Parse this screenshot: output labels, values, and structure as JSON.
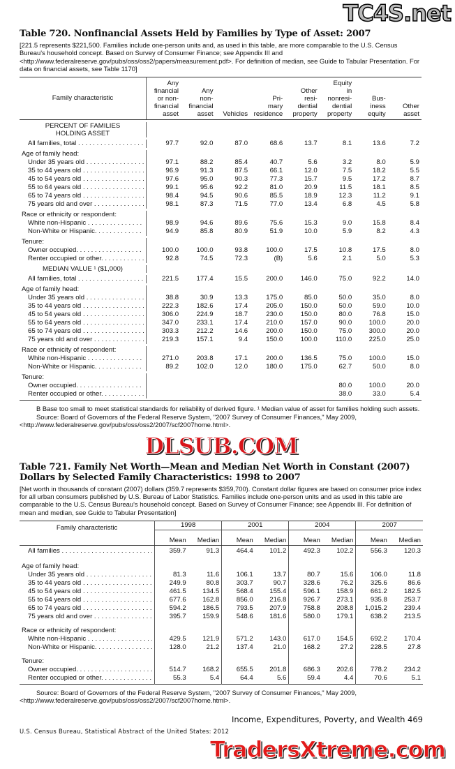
{
  "colors": {
    "watermark_red": "#d8141a",
    "text": "#111111"
  },
  "watermarks": [
    "TC4S.net",
    "DLSUB.COM",
    "TradersXtreme.com"
  ],
  "t720": {
    "title": "Table 720. Nonfinancial Assets Held by Families by Type of Asset: 2007",
    "headnote": "[221.5 represents $221,500. Families include one-person units and, as used in this table, are more comparable to the U.S. Census Bureau's household concept. Based on Survey of Consumer Finance; see Appendix III and <http://www.federalreserve.gov/pubs/oss/oss2/papers/measurement.pdf>. For definition of median, see Guide to Tabular Presentation. For data on financial assets, see Table 1170]",
    "stub_header": "Family characteristic",
    "columns": [
      [
        "Any",
        "financial",
        "or non-",
        "financial",
        "asset"
      ],
      [
        "Any",
        "non-",
        "financial",
        "asset"
      ],
      [
        "Vehicles"
      ],
      [
        "Pri-",
        "mary",
        "residence"
      ],
      [
        "Other",
        "resi-",
        "dential",
        "property"
      ],
      [
        "Equity",
        "in",
        "nonresi-",
        "dential",
        "property"
      ],
      [
        "Bus-",
        "iness",
        "equity"
      ],
      [
        "Other",
        "asset"
      ]
    ],
    "blocks": [
      {
        "caption": "PERCENT OF FAMILIES HOLDING ASSET",
        "total": {
          "label": "All families, total",
          "values": [
            "97.7",
            "92.0",
            "87.0",
            "68.6",
            "13.7",
            "8.1",
            "13.6",
            "7.2"
          ]
        },
        "groups": [
          {
            "heading": "Age of family head:",
            "rows": [
              {
                "label": "Under 35 years old",
                "values": [
                  "97.1",
                  "88.2",
                  "85.4",
                  "40.7",
                  "5.6",
                  "3.2",
                  "8.0",
                  "5.9"
                ]
              },
              {
                "label": "35 to 44 years old",
                "values": [
                  "96.9",
                  "91.3",
                  "87.5",
                  "66.1",
                  "12.0",
                  "7.5",
                  "18.2",
                  "5.5"
                ]
              },
              {
                "label": "45 to 54 years old",
                "values": [
                  "97.6",
                  "95.0",
                  "90.3",
                  "77.3",
                  "15.7",
                  "9.5",
                  "17.2",
                  "8.7"
                ]
              },
              {
                "label": "55 to 64 years old",
                "values": [
                  "99.1",
                  "95.6",
                  "92.2",
                  "81.0",
                  "20.9",
                  "11.5",
                  "18.1",
                  "8.5"
                ]
              },
              {
                "label": "65 to 74 years old",
                "values": [
                  "98.4",
                  "94.5",
                  "90.6",
                  "85.5",
                  "18.9",
                  "12.3",
                  "11.2",
                  "9.1"
                ]
              },
              {
                "label": "75 years old and over",
                "values": [
                  "98.1",
                  "87.3",
                  "71.5",
                  "77.0",
                  "13.4",
                  "6.8",
                  "4.5",
                  "5.8"
                ]
              }
            ]
          },
          {
            "heading": "Race or ethnicity or respondent:",
            "rows": [
              {
                "label": "White non-Hispanic",
                "values": [
                  "98.9",
                  "94.6",
                  "89.6",
                  "75.6",
                  "15.3",
                  "9.0",
                  "15.8",
                  "8.4"
                ]
              },
              {
                "label": "Non-White or Hispanic.",
                "values": [
                  "94.9",
                  "85.8",
                  "80.9",
                  "51.9",
                  "10.0",
                  "5.9",
                  "8.2",
                  "4.3"
                ]
              }
            ]
          },
          {
            "heading": "Tenure:",
            "rows": [
              {
                "label": "Owner occupied.",
                "values": [
                  "100.0",
                  "100.0",
                  "93.8",
                  "100.0",
                  "17.5",
                  "10.8",
                  "17.5",
                  "8.0"
                ]
              },
              {
                "label": "Renter occupied or other.",
                "values": [
                  "92.8",
                  "74.5",
                  "72.3",
                  "(B)",
                  "5.6",
                  "2.1",
                  "5.0",
                  "5.3"
                ]
              }
            ]
          }
        ]
      },
      {
        "caption": "MEDIAN VALUE ¹ ($1,000)",
        "total": {
          "label": "All families, total",
          "values": [
            "221.5",
            "177.4",
            "15.5",
            "200.0",
            "146.0",
            "75.0",
            "92.2",
            "14.0"
          ]
        },
        "groups": [
          {
            "heading": "Age of family head:",
            "rows": [
              {
                "label": "Under 35 years old",
                "values": [
                  "38.8",
                  "30.9",
                  "13.3",
                  "175.0",
                  "85.0",
                  "50.0",
                  "35.0",
                  "8.0"
                ]
              },
              {
                "label": "35 to 44 years old",
                "values": [
                  "222.3",
                  "182.6",
                  "17.4",
                  "205.0",
                  "150.0",
                  "50.0",
                  "59.0",
                  "10.0"
                ]
              },
              {
                "label": "45 to 54 years old",
                "values": [
                  "306.0",
                  "224.9",
                  "18.7",
                  "230.0",
                  "150.0",
                  "80.0",
                  "76.8",
                  "15.0"
                ]
              },
              {
                "label": "55 to 64 years old",
                "values": [
                  "347.0",
                  "233.1",
                  "17.4",
                  "210.0",
                  "157.0",
                  "90.0",
                  "100.0",
                  "20.0"
                ]
              },
              {
                "label": "65 to 74 years old",
                "values": [
                  "303.3",
                  "212.2",
                  "14.6",
                  "200.0",
                  "150.0",
                  "75.0",
                  "300.0",
                  "20.0"
                ]
              },
              {
                "label": "75 years old and over",
                "values": [
                  "219.3",
                  "157.1",
                  "9.4",
                  "150.0",
                  "100.0",
                  "110.0",
                  "225.0",
                  "25.0"
                ]
              }
            ]
          },
          {
            "heading": "Race or ethnicity of respondent:",
            "rows": [
              {
                "label": "White non-Hispanic",
                "values": [
                  "271.0",
                  "203.8",
                  "17.1",
                  "200.0",
                  "136.5",
                  "75.0",
                  "100.0",
                  "15.0"
                ]
              },
              {
                "label": "Non-White or Hispanic.",
                "values": [
                  "89.2",
                  "102.0",
                  "12.0",
                  "180.0",
                  "175.0",
                  "62.7",
                  "50.0",
                  "8.0"
                ]
              }
            ]
          },
          {
            "heading": "Tenure:",
            "rows": [
              {
                "label": "Owner occupied.",
                "values": [
                  "",
                  "",
                  "",
                  "",
                  "",
                  "80.0",
                  "100.0",
                  "20.0"
                ]
              },
              {
                "label": "Renter occupied or other.",
                "values": [
                  "",
                  "",
                  "",
                  "",
                  "",
                  "38.0",
                  "33.0",
                  "5.4"
                ]
              }
            ]
          }
        ]
      }
    ],
    "footnote": "B Base too small to meet statistical standards for reliability of derived figure.  ¹ Median value of asset for families holding such assets.",
    "source": "Source: Board of Governors of the Federal Reserve System, \"2007 Survey of Consumer Finances,\" May 2009, <http://www.federalreserve.gov/pubs/oss/oss2/2007/scf2007home.html>."
  },
  "t721": {
    "title_line1": "Table 721. Family Net Worth—Mean and Median Net Worth in Constant (2007)",
    "title_line2": "Dollars by Selected Family Characteristics: 1998 to 2007",
    "headnote": "[Net worth in thousands of constant (2007) dollars (359.7 represents $359,700). Constant dollar figures are based on consumer price index for all urban consumers published by U.S. Bureau of Labor Statistics. Families include one-person units and as used in this table are comparable to the U.S. Census Bureau's household concept. Based on Survey of Consumer Finance; see Appendix III. For definition of mean and median, see Guide to Tabular Presentation]",
    "stub_header": "Family characteristic",
    "years": [
      "1998",
      "2001",
      "2004",
      "2007"
    ],
    "sub_headers": [
      "Mean",
      "Median"
    ],
    "total": {
      "label": "All families",
      "values": [
        "359.7",
        "91.3",
        "464.4",
        "101.2",
        "492.3",
        "102.2",
        "556.3",
        "120.3"
      ]
    },
    "groups": [
      {
        "heading": "Age of family head:",
        "rows": [
          {
            "label": "Under 35 years old",
            "values": [
              "81.3",
              "11.6",
              "106.1",
              "13.7",
              "80.7",
              "15.6",
              "106.0",
              "11.8"
            ]
          },
          {
            "label": "35 to 44 years old",
            "values": [
              "249.9",
              "80.8",
              "303.7",
              "90.7",
              "328.6",
              "76.2",
              "325.6",
              "86.6"
            ]
          },
          {
            "label": "45 to 54 years old",
            "values": [
              "461.5",
              "134.5",
              "568.4",
              "155.4",
              "596.1",
              "158.9",
              "661.2",
              "182.5"
            ]
          },
          {
            "label": "55 to 64 years old",
            "values": [
              "677.6",
              "162.8",
              "856.0",
              "216.8",
              "926.7",
              "273.1",
              "935.8",
              "253.7"
            ]
          },
          {
            "label": "65 to 74 years old",
            "values": [
              "594.2",
              "186.5",
              "793.5",
              "207.9",
              "758.8",
              "208.8",
              "1,015.2",
              "239.4"
            ]
          },
          {
            "label": "75 years old and over",
            "values": [
              "395.7",
              "159.9",
              "548.6",
              "181.6",
              "580.0",
              "179.1",
              "638.2",
              "213.5"
            ]
          }
        ]
      },
      {
        "heading": "Race or ethnicity of respondent:",
        "rows": [
          {
            "label": "White non-Hispanic",
            "values": [
              "429.5",
              "121.9",
              "571.2",
              "143.0",
              "617.0",
              "154.5",
              "692.2",
              "170.4"
            ]
          },
          {
            "label": "Non-White or Hispanic.",
            "values": [
              "128.0",
              "21.2",
              "137.4",
              "21.0",
              "168.2",
              "27.2",
              "228.5",
              "27.8"
            ]
          }
        ]
      },
      {
        "heading": "Tenure:",
        "rows": [
          {
            "label": "Owner occupied.",
            "values": [
              "514.7",
              "168.2",
              "655.5",
              "201.8",
              "686.3",
              "202.6",
              "778.2",
              "234.2"
            ]
          },
          {
            "label": "Renter occupied or other.",
            "values": [
              "55.3",
              "5.4",
              "64.4",
              "5.6",
              "59.4",
              "4.4",
              "70.6",
              "5.1"
            ]
          }
        ]
      }
    ],
    "source": "Source: Board of Governors of the Federal Reserve System, \"2007 Survey of Consumer Finances,\" May 2009, <http://www.federalreserve.gov/pubs/oss/oss2/2007/scf2007home.html>."
  },
  "footer": {
    "section": "Income, Expenditures, Poverty, and Wealth  469",
    "publisher": "U.S. Census Bureau, Statistical Abstract of the United States: 2012"
  }
}
